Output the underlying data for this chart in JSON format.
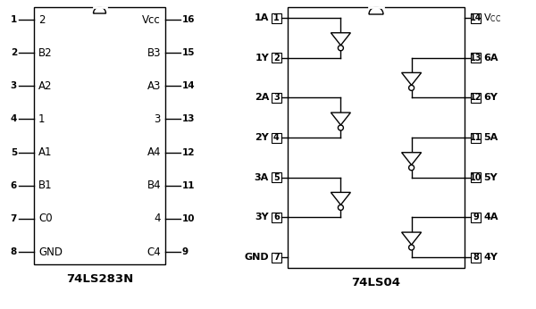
{
  "bg_color": "#ffffff",
  "lc": "#000000",
  "ls283_title": "74LS283N",
  "ls283_left_pins": [
    {
      "num": "1",
      "label": "2"
    },
    {
      "num": "2",
      "label": "B2"
    },
    {
      "num": "3",
      "label": "A2"
    },
    {
      "num": "4",
      "label": "1"
    },
    {
      "num": "5",
      "label": "A1"
    },
    {
      "num": "6",
      "label": "B1"
    },
    {
      "num": "7",
      "label": "C0"
    },
    {
      "num": "8",
      "label": "GND"
    }
  ],
  "ls283_right_pins": [
    {
      "num": "16",
      "label": "Vcc"
    },
    {
      "num": "15",
      "label": "B3"
    },
    {
      "num": "14",
      "label": "A3"
    },
    {
      "num": "13",
      "label": "3"
    },
    {
      "num": "12",
      "label": "A4"
    },
    {
      "num": "11",
      "label": "B4"
    },
    {
      "num": "10",
      "label": "4"
    },
    {
      "num": "9",
      "label": "C4"
    }
  ],
  "ls04_title": "74LS04",
  "ls04_left_pins": [
    {
      "num": "1",
      "label": "1A"
    },
    {
      "num": "2",
      "label": "1Y"
    },
    {
      "num": "3",
      "label": "2A"
    },
    {
      "num": "4",
      "label": "2Y"
    },
    {
      "num": "5",
      "label": "3A"
    },
    {
      "num": "6",
      "label": "3Y"
    },
    {
      "num": "7",
      "label": "GND"
    }
  ],
  "ls04_right_pins": [
    {
      "num": "14",
      "label": "Vcc"
    },
    {
      "num": "13",
      "label": "6A"
    },
    {
      "num": "12",
      "label": "6Y"
    },
    {
      "num": "11",
      "label": "5A"
    },
    {
      "num": "10",
      "label": "5Y"
    },
    {
      "num": "9",
      "label": "4A"
    },
    {
      "num": "8",
      "label": "4Y"
    }
  ]
}
